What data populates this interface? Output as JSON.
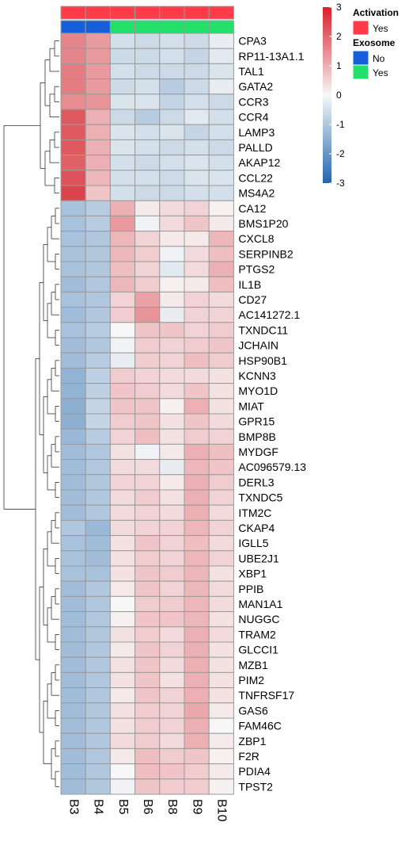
{
  "chart_data": {
    "type": "heatmap",
    "columns": [
      "B3",
      "B4",
      "B5",
      "B6",
      "B8",
      "B9",
      "B10"
    ],
    "rows": [
      "CPA3",
      "RP11-13A1.1",
      "TAL1",
      "GATA2",
      "CCR3",
      "CCR4",
      "LAMP3",
      "PALLD",
      "AKAP12",
      "CCL22",
      "MS4A2",
      "CA12",
      "BMS1P20",
      "CXCL8",
      "SERPINB2",
      "PTGS2",
      "IL1B",
      "CD27",
      "AC141272.1",
      "TXNDC11",
      "JCHAIN",
      "HSP90B1",
      "KCNN3",
      "MYO1D",
      "MIAT",
      "GPR15",
      "BMP8B",
      "MYDGF",
      "AC096579.13",
      "DERL3",
      "TXNDC5",
      "ITM2C",
      "CKAP4",
      "IGLL5",
      "UBE2J1",
      "XBP1",
      "PPIB",
      "MAN1A1",
      "NUGGC",
      "TRAM2",
      "GLCCI1",
      "MZB1",
      "PIM2",
      "TNFRSF17",
      "GAS6",
      "FAM46C",
      "ZBP1",
      "F2R",
      "PDIA4",
      "TPST2"
    ],
    "values": [
      [
        1.6,
        1.3,
        -0.5,
        -0.6,
        -0.5,
        -0.6,
        -0.2
      ],
      [
        1.6,
        1.3,
        -0.6,
        -0.6,
        -0.5,
        -0.7,
        -0.3
      ],
      [
        1.7,
        1.3,
        -0.5,
        -0.6,
        -0.6,
        -0.6,
        -0.4
      ],
      [
        1.7,
        1.3,
        -0.6,
        -0.5,
        -0.9,
        -0.6,
        -0.2
      ],
      [
        1.5,
        1.4,
        -0.4,
        -0.4,
        -0.7,
        -0.5,
        -0.6
      ],
      [
        2.2,
        1.0,
        -0.6,
        -0.9,
        -0.6,
        -0.3,
        -0.5
      ],
      [
        2.2,
        1.0,
        -0.4,
        -0.5,
        -0.4,
        -0.7,
        -0.5
      ],
      [
        2.2,
        1.0,
        -0.4,
        -0.5,
        -0.6,
        -0.5,
        -0.6
      ],
      [
        2.1,
        1.0,
        -0.5,
        -0.6,
        -0.5,
        -0.4,
        -0.5
      ],
      [
        2.3,
        0.9,
        -0.5,
        -0.5,
        -0.6,
        -0.4,
        -0.4
      ],
      [
        2.5,
        0.7,
        -0.5,
        -0.6,
        -0.6,
        -0.5,
        -0.5
      ],
      [
        -1.1,
        -0.9,
        1.0,
        0.2,
        0.4,
        0.5,
        0.1
      ],
      [
        -1.1,
        -0.9,
        1.3,
        -0.1,
        0.4,
        0.7,
        0.2
      ],
      [
        -1.1,
        -1.0,
        0.9,
        0.5,
        0.2,
        0.2,
        0.9
      ],
      [
        -1.1,
        -1.0,
        0.9,
        0.6,
        -0.1,
        0.4,
        0.8
      ],
      [
        -1.1,
        -1.0,
        0.8,
        0.5,
        -0.3,
        0.4,
        1.0
      ],
      [
        -1.2,
        -1.0,
        0.9,
        0.6,
        0.1,
        0.2,
        0.8
      ],
      [
        -1.1,
        -1.0,
        0.5,
        1.2,
        0.2,
        0.5,
        0.4
      ],
      [
        -1.2,
        -1.0,
        0.6,
        1.4,
        -0.2,
        0.5,
        0.5
      ],
      [
        -1.1,
        -0.9,
        0.0,
        0.7,
        0.7,
        0.5,
        0.6
      ],
      [
        -1.2,
        -1.0,
        -0.1,
        0.6,
        0.5,
        0.6,
        0.7
      ],
      [
        -1.2,
        -0.9,
        -0.2,
        0.6,
        0.5,
        0.8,
        0.6
      ],
      [
        -1.4,
        -0.8,
        0.6,
        0.5,
        0.4,
        0.4,
        0.3
      ],
      [
        -1.4,
        -0.8,
        0.7,
        0.6,
        0.4,
        0.7,
        0.3
      ],
      [
        -1.5,
        -0.7,
        0.7,
        0.7,
        0.1,
        1.0,
        0.3
      ],
      [
        -1.5,
        -0.7,
        0.6,
        0.7,
        0.3,
        0.7,
        0.4
      ],
      [
        -1.3,
        -0.9,
        0.5,
        0.8,
        0.3,
        0.6,
        0.5
      ],
      [
        -1.2,
        -1.0,
        0.3,
        -0.1,
        0.2,
        1.0,
        0.8
      ],
      [
        -1.2,
        -1.0,
        0.4,
        0.4,
        -0.2,
        0.9,
        0.7
      ],
      [
        -1.2,
        -1.0,
        0.5,
        0.5,
        0.2,
        1.0,
        0.6
      ],
      [
        -1.2,
        -1.0,
        0.4,
        0.6,
        0.3,
        1.0,
        0.5
      ],
      [
        -1.2,
        -1.0,
        0.4,
        0.5,
        0.4,
        1.0,
        0.4
      ],
      [
        -1.0,
        -1.3,
        0.4,
        0.5,
        0.5,
        0.9,
        0.5
      ],
      [
        -1.1,
        -1.2,
        0.3,
        0.7,
        0.5,
        0.8,
        0.4
      ],
      [
        -1.1,
        -1.2,
        0.3,
        0.6,
        0.5,
        0.9,
        0.5
      ],
      [
        -1.1,
        -1.1,
        0.3,
        0.7,
        0.6,
        0.9,
        0.3
      ],
      [
        -1.2,
        -1.0,
        0.2,
        0.7,
        0.5,
        0.9,
        0.4
      ],
      [
        -1.2,
        -1.0,
        0.0,
        0.6,
        0.6,
        0.9,
        0.4
      ],
      [
        -1.2,
        -1.0,
        0.1,
        0.7,
        0.7,
        0.9,
        0.3
      ],
      [
        -1.2,
        -1.0,
        0.3,
        0.6,
        0.4,
        1.0,
        0.4
      ],
      [
        -1.2,
        -1.0,
        0.2,
        0.7,
        0.5,
        1.0,
        0.3
      ],
      [
        -1.2,
        -1.0,
        0.3,
        0.7,
        0.4,
        1.0,
        0.3
      ],
      [
        -1.2,
        -1.0,
        0.3,
        0.7,
        0.3,
        1.0,
        0.3
      ],
      [
        -1.2,
        -1.0,
        0.2,
        0.7,
        0.5,
        1.0,
        0.3
      ],
      [
        -1.2,
        -1.0,
        0.3,
        0.6,
        0.5,
        1.1,
        0.2
      ],
      [
        -1.2,
        -1.0,
        0.3,
        0.6,
        0.5,
        1.0,
        0.0
      ],
      [
        -1.2,
        -1.0,
        0.4,
        0.6,
        0.4,
        1.0,
        0.2
      ],
      [
        -1.2,
        -1.0,
        0.2,
        0.8,
        0.6,
        0.7,
        0.1
      ],
      [
        -1.2,
        -1.0,
        0.0,
        0.8,
        0.7,
        0.6,
        0.2
      ],
      [
        -1.2,
        -1.0,
        -0.1,
        0.7,
        0.6,
        0.6,
        0.1
      ]
    ],
    "annotations": {
      "Activation": [
        "Yes",
        "Yes",
        "Yes",
        "Yes",
        "Yes",
        "Yes",
        "Yes"
      ],
      "Exosome": [
        "No",
        "No",
        "Yes",
        "Yes",
        "Yes",
        "Yes",
        "Yes"
      ]
    },
    "color_scale": {
      "min": -3,
      "mid": 0,
      "max": 3,
      "low_color": "#2166ac",
      "mid_color": "#f7f7f7",
      "high_color": "#d6202b",
      "ticks": [
        3,
        2,
        1,
        0,
        -1,
        -2,
        -3
      ]
    },
    "legends": [
      {
        "title": "Activation",
        "items": [
          {
            "label": "Yes",
            "color": "#ff3b4a"
          }
        ]
      },
      {
        "title": "Exosome",
        "items": [
          {
            "label": "No",
            "color": "#1560d8"
          },
          {
            "label": "Yes",
            "color": "#22e06a"
          }
        ]
      }
    ],
    "row_dendrogram": true
  }
}
